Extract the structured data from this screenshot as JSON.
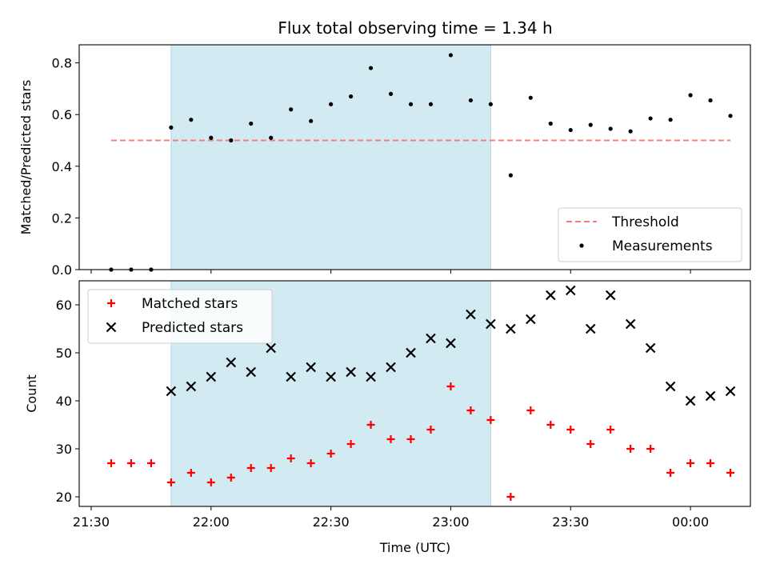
{
  "chart_data": [
    {
      "type": "scatter",
      "title": "Flux total observing time = 1.34 h",
      "xlabel": "",
      "ylabel": "Matched/Predicted stars",
      "ylim": [
        0,
        0.87
      ],
      "yticks": [
        "0.0",
        "0.2",
        "0.4",
        "0.6",
        "0.8"
      ],
      "grid": false,
      "legend": "lower-right",
      "shaded_interval": {
        "start": "21:50",
        "end": "23:10",
        "color": "#add8e6"
      },
      "threshold": {
        "name": "Threshold",
        "value": 0.5,
        "x_start": "21:35",
        "x_end": "00:10",
        "color": "#f08080",
        "style": "dashed"
      },
      "series": [
        {
          "name": "Measurements",
          "color": "#000000",
          "marker": "dot",
          "x": [
            "21:35",
            "21:40",
            "21:45",
            "21:50",
            "21:55",
            "22:00",
            "22:05",
            "22:10",
            "22:15",
            "22:20",
            "22:25",
            "22:30",
            "22:35",
            "22:40",
            "22:45",
            "22:50",
            "22:55",
            "23:00",
            "23:05",
            "23:10",
            "23:15",
            "23:20",
            "23:25",
            "23:30",
            "23:35",
            "23:40",
            "23:45",
            "23:50",
            "23:55",
            "00:00",
            "00:05",
            "00:10"
          ],
          "y": [
            0.0,
            0.0,
            0.0,
            0.55,
            0.58,
            0.51,
            0.5,
            0.565,
            0.51,
            0.62,
            0.575,
            0.64,
            0.67,
            0.78,
            0.68,
            0.64,
            0.64,
            0.83,
            0.655,
            0.64,
            0.365,
            0.665,
            0.565,
            0.54,
            0.56,
            0.545,
            0.535,
            0.585,
            0.58,
            0.675,
            0.655,
            0.595
          ]
        }
      ]
    },
    {
      "type": "scatter",
      "title": "",
      "xlabel": "Time (UTC)",
      "ylabel": "Count",
      "ylim": [
        18,
        65
      ],
      "yticks": [
        "20",
        "30",
        "40",
        "50",
        "60"
      ],
      "xlim": [
        "21:27",
        "00:15"
      ],
      "xticks": [
        "21:30",
        "22:00",
        "22:30",
        "23:00",
        "23:30",
        "00:00"
      ],
      "grid": false,
      "legend": "upper-left",
      "shaded_interval": {
        "start": "21:50",
        "end": "23:10",
        "color": "#add8e6"
      },
      "series": [
        {
          "name": "Matched stars",
          "color": "#ff0000",
          "marker": "plus",
          "x": [
            "21:35",
            "21:40",
            "21:45",
            "21:50",
            "21:55",
            "22:00",
            "22:05",
            "22:10",
            "22:15",
            "22:20",
            "22:25",
            "22:30",
            "22:35",
            "22:40",
            "22:45",
            "22:50",
            "22:55",
            "23:00",
            "23:05",
            "23:10",
            "23:15",
            "23:20",
            "23:25",
            "23:30",
            "23:35",
            "23:40",
            "23:45",
            "23:50",
            "23:55",
            "00:00",
            "00:05",
            "00:10"
          ],
          "y": [
            27,
            27,
            27,
            23,
            25,
            23,
            24,
            26,
            26,
            28,
            27,
            29,
            31,
            35,
            32,
            32,
            34,
            43,
            38,
            36,
            20,
            38,
            35,
            34,
            31,
            34,
            30,
            30,
            25,
            27,
            27,
            25
          ]
        },
        {
          "name": "Predicted stars",
          "color": "#000000",
          "marker": "x",
          "x": [
            "21:50",
            "21:55",
            "22:00",
            "22:05",
            "22:10",
            "22:15",
            "22:20",
            "22:25",
            "22:30",
            "22:35",
            "22:40",
            "22:45",
            "22:50",
            "22:55",
            "23:00",
            "23:05",
            "23:10",
            "23:15",
            "23:20",
            "23:25",
            "23:30",
            "23:35",
            "23:40",
            "23:45",
            "23:50",
            "23:55",
            "00:00",
            "00:05",
            "00:10"
          ],
          "y": [
            42,
            43,
            45,
            48,
            46,
            51,
            45,
            47,
            45,
            46,
            45,
            47,
            50,
            53,
            52,
            58,
            56,
            55,
            57,
            62,
            63,
            55,
            62,
            56,
            51,
            43,
            40,
            41,
            42
          ]
        }
      ]
    }
  ]
}
